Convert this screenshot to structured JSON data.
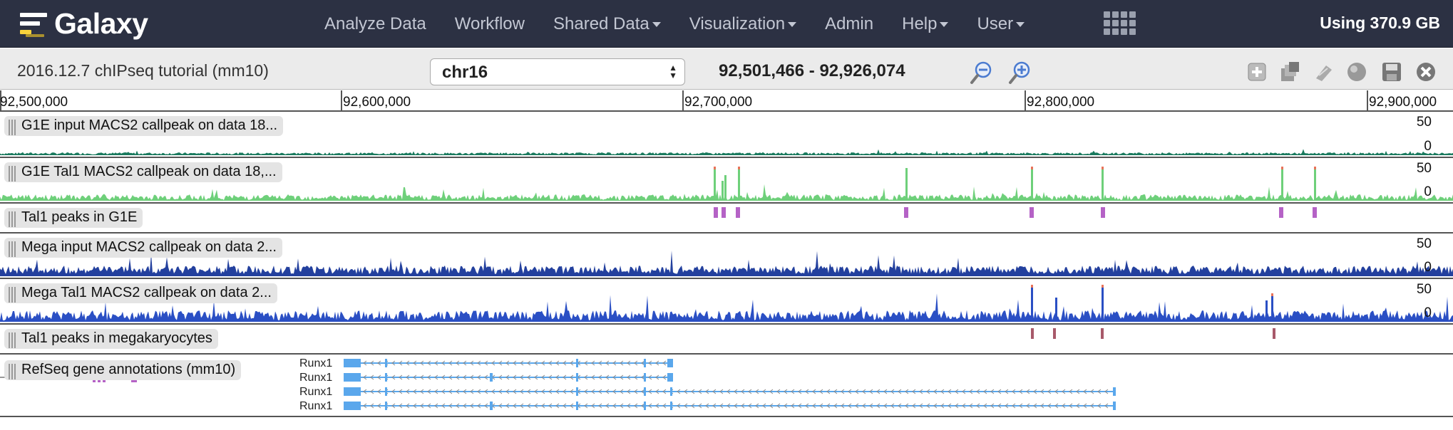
{
  "masthead": {
    "brand": "Galaxy",
    "nav": [
      {
        "label": "Analyze Data",
        "dropdown": false
      },
      {
        "label": "Workflow",
        "dropdown": false
      },
      {
        "label": "Shared Data",
        "dropdown": true
      },
      {
        "label": "Visualization",
        "dropdown": true
      },
      {
        "label": "Admin",
        "dropdown": false
      },
      {
        "label": "Help",
        "dropdown": true
      },
      {
        "label": "User",
        "dropdown": true
      }
    ],
    "quota": "Using 370.9 GB"
  },
  "toolbar": {
    "title": "2016.12.7 chIPseq tutorial (mm10)",
    "chromosome": "chr16",
    "location": "92,501,466 - 92,926,074",
    "icons": [
      "zoom-out-icon",
      "zoom-in-icon",
      "add-tracks-icon",
      "bookmarks-icon",
      "circster-icon",
      "saturation-icon",
      "save-icon",
      "close-icon"
    ]
  },
  "ruler": {
    "ticks": [
      "92,500,000",
      "92,600,000",
      "92,700,000",
      "92,800,000",
      "92,900,000"
    ]
  },
  "colors": {
    "g1e_input": "#1a7a5e",
    "g1e_tal1": "#6ed07a",
    "peak_g1e": "#b562c6",
    "mega": "#23409e",
    "mega_tal1": "#2a4fc4",
    "peak_mega": "#a8596a",
    "gene": "#5aa7ec",
    "overflow": "#e8735a"
  },
  "tracks": [
    {
      "name": "G1E input MACS2 callpeak on data 18...",
      "kind": "signal",
      "max": "50",
      "min": "0"
    },
    {
      "name": "G1E Tal1 MACS2 callpeak on data 18,...",
      "kind": "signal",
      "max": "50",
      "min": "0"
    },
    {
      "name": "Tal1 peaks in G1E",
      "kind": "peaks"
    },
    {
      "name": "Mega input MACS2 callpeak on data 2...",
      "kind": "signal",
      "max": "50",
      "min": "0"
    },
    {
      "name": "Mega Tal1 MACS2 callpeak on data 2...",
      "kind": "signal",
      "max": "50",
      "min": "0"
    },
    {
      "name": "Tal1 peaks in megakaryocytes",
      "kind": "peaks"
    },
    {
      "name": "RefSeq gene annotations (mm10)",
      "kind": "genes",
      "genes": [
        "Runx1",
        "Runx1",
        "Runx1",
        "Runx1"
      ]
    }
  ]
}
